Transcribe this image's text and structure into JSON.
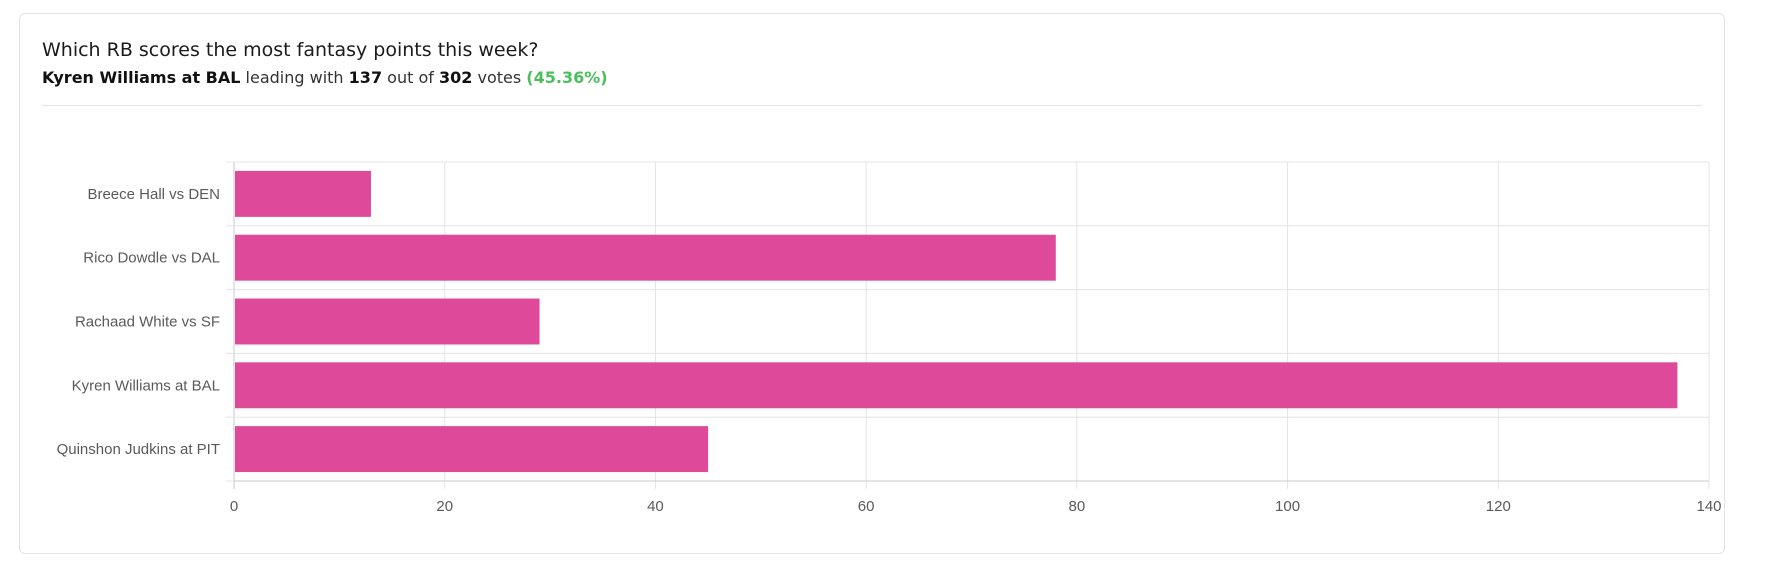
{
  "poll": {
    "question": "Which RB scores the most fantasy points this week?",
    "leader": "Kyren Williams at BAL",
    "leading_with": "leading with",
    "leader_votes": "137",
    "out_of": "out of",
    "total_votes": "302",
    "votes_word": "votes",
    "leader_pct": "(45.36%)"
  },
  "colors": {
    "bar": "#de4999",
    "grid": "#e4e4e4",
    "axis": "#c9c9c9",
    "label": "#5a5a5a",
    "accent_green": "#4cbf5c"
  },
  "chart_data": {
    "type": "bar",
    "orientation": "horizontal",
    "categories": [
      "Breece Hall vs DEN",
      "Rico Dowdle vs DAL",
      "Rachaad White vs SF",
      "Kyren Williams at BAL",
      "Quinshon Judkins at PIT"
    ],
    "values": [
      13,
      78,
      29,
      137,
      45
    ],
    "xlim": [
      0,
      140
    ],
    "xticks": [
      0,
      20,
      40,
      60,
      80,
      100,
      120,
      140
    ],
    "grid": true,
    "legend": false
  }
}
